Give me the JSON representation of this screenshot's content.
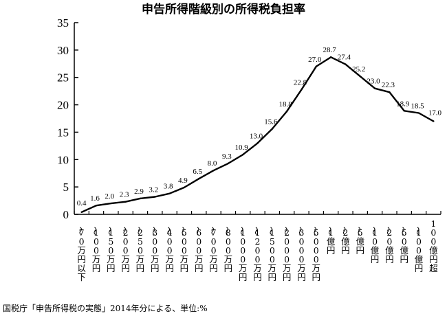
{
  "chart_data": {
    "type": "line",
    "title": "申告所得階級別の所得税負担率",
    "ylim": [
      0,
      35
    ],
    "yticks": [
      "0",
      "5",
      "10",
      "15",
      "20",
      "25",
      "30",
      "35"
    ],
    "grid": false,
    "categories": [
      "〜70万円以下",
      "〜100万円",
      "〜150万円",
      "〜200万円",
      "〜250万円",
      "〜300万円",
      "〜400万円",
      "〜500万円",
      "〜600万円",
      "〜700万円",
      "〜800万円",
      "〜1000万円",
      "〜1200万円",
      "〜1500万円",
      "〜2000万円",
      "〜3000万円",
      "〜5000万円",
      "〜1億円",
      "〜2億円",
      "〜5億円",
      "〜10億円",
      "〜20億円",
      "〜50億円",
      "〜100億円",
      "100億円超"
    ],
    "values": [
      0.4,
      1.6,
      2.0,
      2.3,
      2.9,
      3.2,
      3.8,
      4.9,
      6.5,
      8.0,
      9.3,
      10.9,
      13.0,
      15.6,
      18.8,
      22.8,
      27.0,
      28.7,
      27.4,
      25.2,
      23.0,
      22.3,
      18.9,
      18.5,
      17.0
    ],
    "value_labels": [
      "0.4",
      "1.6",
      "2.0",
      "2.3",
      "2.9",
      "3.2",
      "3.8",
      "4.9",
      "6.5",
      "8.0",
      "9.3",
      "10.9",
      "13.0",
      "15.6",
      "18.8",
      "22.8",
      "27.0",
      "28.7",
      "27.4",
      "25.2",
      "23.0",
      "22.3",
      "18.9",
      "18.5",
      "17.0"
    ],
    "source": "国税庁「申告所得税の実態」2014年分による、単位:%"
  },
  "colors": {
    "line": "#000000",
    "text": "#000000",
    "background": "#ffffff"
  }
}
